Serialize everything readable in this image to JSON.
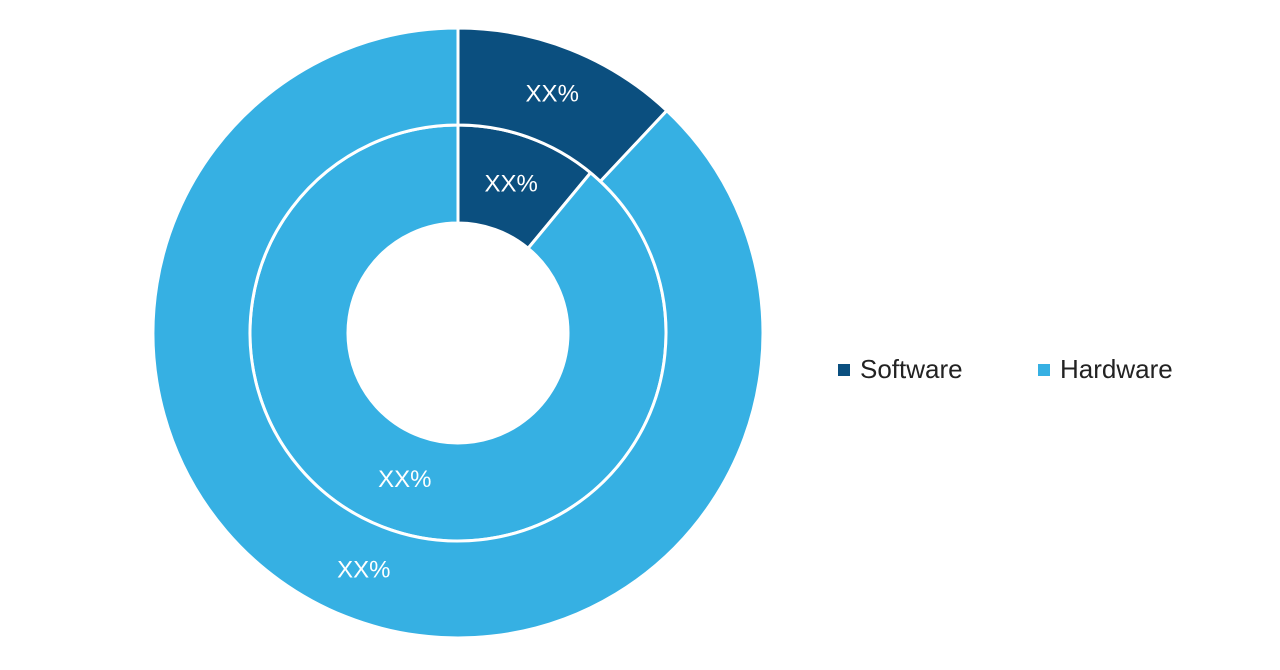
{
  "chart_data": {
    "type": "donut",
    "categories": [
      "Software",
      "Hardware"
    ],
    "colors": [
      "#0b4f7f",
      "#36b0e3"
    ],
    "rings": [
      {
        "values": [
          11,
          89
        ],
        "value_labels": [
          "XX%",
          "XX%"
        ]
      },
      {
        "values": [
          12,
          88
        ],
        "value_labels": [
          "XX%",
          "XX%"
        ]
      }
    ],
    "legend": "right"
  }
}
